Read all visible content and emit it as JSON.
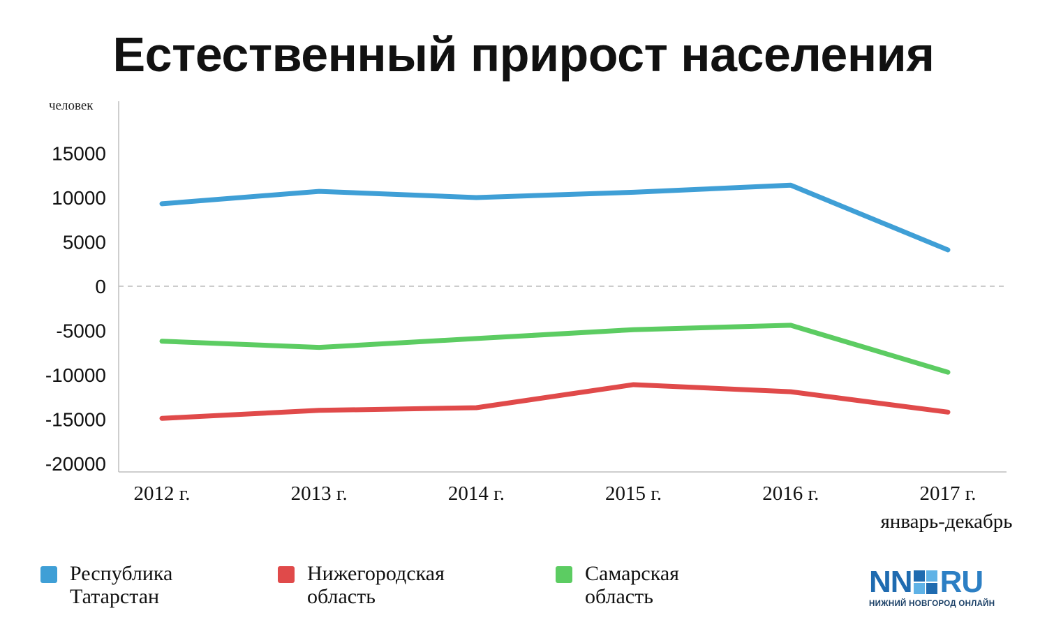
{
  "chart_data": {
    "type": "line",
    "title": "Естественный прирост населения",
    "ylabel": "человек",
    "ylim": [
      -20000,
      20000
    ],
    "yticks": [
      15000,
      10000,
      5000,
      0,
      -5000,
      -10000,
      -15000,
      -20000
    ],
    "categories": [
      "2012 г.",
      "2013 г.",
      "2014 г.",
      "2015 г.",
      "2016 г.",
      "2017 г."
    ],
    "category_sublabels": [
      "",
      "",
      "",
      "",
      "",
      "январь-декабрь"
    ],
    "series": [
      {
        "name": "Республика Татарстан",
        "color": "#3f9fd6",
        "values": [
          9300,
          10700,
          10000,
          10600,
          11400,
          4100
        ]
      },
      {
        "name": "Нижегородская область",
        "color": "#e04a4a",
        "values": [
          -14900,
          -14000,
          -13700,
          -11100,
          -11900,
          -14200
        ]
      },
      {
        "name": "Самарская область",
        "color": "#5ccc62",
        "values": [
          -6200,
          -6900,
          -5900,
          -4900,
          -4400,
          -9700
        ]
      }
    ],
    "grid": false,
    "zero_line": "dashed",
    "legend_position": "bottom"
  },
  "legend": {
    "items": [
      {
        "line1": "Республика",
        "line2": "Татарстан",
        "color": "#3f9fd6"
      },
      {
        "line1": "Нижегородская",
        "line2": "область",
        "color": "#e04a4a"
      },
      {
        "line1": "Самарская",
        "line2": "область",
        "color": "#5ccc62"
      }
    ]
  },
  "logo": {
    "left": "NN",
    "right": "RU",
    "tagline": "НИЖНИЙ НОВГОРОД ОНЛАЙН",
    "color": "#1f6bb0"
  }
}
